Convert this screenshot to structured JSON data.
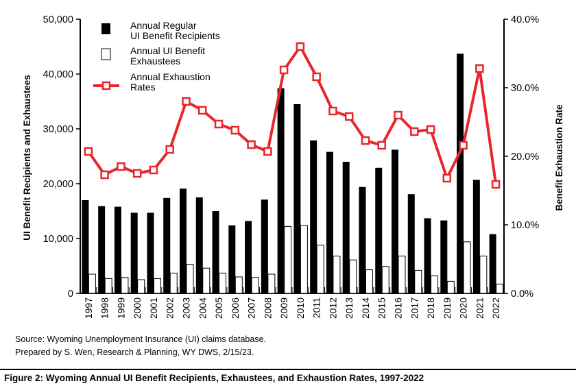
{
  "chart_data": {
    "type": "bar+line",
    "categories": [
      "1997",
      "1998",
      "1999",
      "2000",
      "2001",
      "2002",
      "2003",
      "2004",
      "2005",
      "2006",
      "2007",
      "2008",
      "2009",
      "2010",
      "2011",
      "2012",
      "2013",
      "2014",
      "2015",
      "2016",
      "2017",
      "2018",
      "2019",
      "2020",
      "2021",
      "2022"
    ],
    "series": [
      {
        "name": "Annual Regular UI Benefit Recipients",
        "type": "bar",
        "axis": "left",
        "color": "#000000",
        "values": [
          17000,
          15900,
          15800,
          14700,
          14700,
          17400,
          19100,
          17500,
          15000,
          12400,
          13200,
          17100,
          37400,
          34500,
          27900,
          25800,
          24000,
          19400,
          22900,
          26200,
          18100,
          13700,
          13300,
          43700,
          20700,
          10800
        ]
      },
      {
        "name": "Annual UI Benefit Exhaustees",
        "type": "bar",
        "axis": "left",
        "color": "#ffffff",
        "values": [
          3500,
          2700,
          2900,
          2500,
          2700,
          3700,
          5300,
          4600,
          3700,
          3000,
          2900,
          3500,
          12200,
          12400,
          8800,
          6800,
          6100,
          4300,
          4900,
          6800,
          4200,
          3200,
          2200,
          9400,
          6800,
          1700
        ]
      },
      {
        "name": "Annual Exhaustion Rates",
        "type": "line",
        "axis": "right",
        "color": "#e8262b",
        "values": [
          20.7,
          17.3,
          18.5,
          17.5,
          18.0,
          21.0,
          28.0,
          26.7,
          24.7,
          23.8,
          21.7,
          20.7,
          32.6,
          36.0,
          31.6,
          26.6,
          25.8,
          22.3,
          21.6,
          26.0,
          23.6,
          23.9,
          16.8,
          21.6,
          32.8,
          15.9
        ]
      }
    ],
    "ylabel": "UI Benefit Recipients and Exhaustees",
    "ylim": [
      0,
      50000
    ],
    "yticks": [
      "0",
      "10,000",
      "20,000",
      "30,000",
      "40,000",
      "50,000"
    ],
    "y2label": "Benefit Exhaustion Rate",
    "y2lim": [
      0,
      40
    ],
    "y2ticks": [
      "0.0%",
      "10.0%",
      "20.0%",
      "30.0%",
      "40.0%"
    ],
    "legend": {
      "placement": "top-left",
      "entries": [
        {
          "line1": "Annual Regular",
          "line2": "UI Benefit Recipients"
        },
        {
          "line1": "Annual UI Benefit",
          "line2": "Exhaustees"
        },
        {
          "line1": "Annual Exhaustion",
          "line2": "Rates"
        }
      ]
    },
    "grid": false
  },
  "source_note": "Source: Wyoming Unemployment Insurance (UI) claims database.",
  "prepared_note": "Prepared by S. Wen, Research & Planning, WY DWS, 2/15/23.",
  "figure_caption": "Figure 2: Wyoming Annual UI Benefit Recipients, Exhaustees, and Exhaustion Rates, 1997-2022"
}
